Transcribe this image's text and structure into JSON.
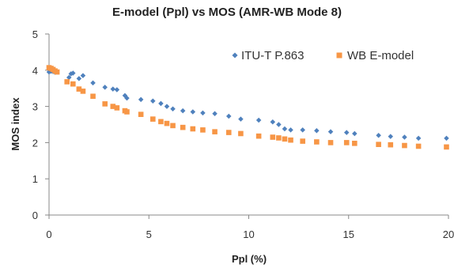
{
  "chart_data": {
    "type": "scatter",
    "title": "E-model (Ppl) vs MOS (AMR-WB Mode 8)",
    "xlabel": "Ppl (%)",
    "ylabel": "MOS index",
    "xlim": [
      0,
      20
    ],
    "ylim": [
      0,
      5
    ],
    "xticks": [
      "0",
      "5",
      "10",
      "15",
      "20"
    ],
    "yticks": [
      "0",
      "1",
      "2",
      "3",
      "4",
      "5"
    ],
    "grid": false,
    "legend_position": "top-right",
    "series": [
      {
        "name": "ITU-T P.863",
        "marker": "diamond",
        "color": "#4f81bd",
        "points": [
          [
            0.0,
            3.95
          ],
          [
            0.05,
            4.0
          ],
          [
            0.1,
            3.97
          ],
          [
            0.2,
            3.96
          ],
          [
            0.3,
            3.94
          ],
          [
            1.0,
            3.8
          ],
          [
            1.1,
            3.9
          ],
          [
            1.2,
            3.92
          ],
          [
            1.5,
            3.77
          ],
          [
            1.7,
            3.85
          ],
          [
            2.2,
            3.65
          ],
          [
            2.8,
            3.53
          ],
          [
            3.2,
            3.48
          ],
          [
            3.4,
            3.46
          ],
          [
            3.8,
            3.3
          ],
          [
            3.9,
            3.23
          ],
          [
            4.6,
            3.19
          ],
          [
            5.2,
            3.15
          ],
          [
            5.6,
            3.08
          ],
          [
            5.9,
            3.0
          ],
          [
            6.2,
            2.93
          ],
          [
            6.7,
            2.88
          ],
          [
            7.2,
            2.85
          ],
          [
            7.7,
            2.82
          ],
          [
            8.3,
            2.8
          ],
          [
            9.0,
            2.73
          ],
          [
            9.6,
            2.65
          ],
          [
            10.5,
            2.62
          ],
          [
            11.2,
            2.57
          ],
          [
            11.5,
            2.5
          ],
          [
            11.8,
            2.38
          ],
          [
            12.1,
            2.35
          ],
          [
            12.7,
            2.35
          ],
          [
            13.4,
            2.33
          ],
          [
            14.1,
            2.3
          ],
          [
            14.9,
            2.28
          ],
          [
            15.3,
            2.25
          ],
          [
            16.5,
            2.2
          ],
          [
            17.1,
            2.17
          ],
          [
            17.8,
            2.15
          ],
          [
            18.5,
            2.12
          ],
          [
            19.9,
            2.12
          ]
        ]
      },
      {
        "name": "WB E-model",
        "marker": "square",
        "color": "#f79646",
        "points": [
          [
            0.0,
            4.07
          ],
          [
            0.1,
            4.05
          ],
          [
            0.2,
            4.02
          ],
          [
            0.3,
            3.98
          ],
          [
            0.4,
            3.95
          ],
          [
            0.9,
            3.68
          ],
          [
            1.2,
            3.62
          ],
          [
            1.5,
            3.48
          ],
          [
            1.7,
            3.42
          ],
          [
            2.2,
            3.28
          ],
          [
            2.8,
            3.07
          ],
          [
            3.2,
            3.0
          ],
          [
            3.4,
            2.96
          ],
          [
            3.8,
            2.88
          ],
          [
            3.9,
            2.85
          ],
          [
            4.6,
            2.78
          ],
          [
            5.2,
            2.65
          ],
          [
            5.6,
            2.58
          ],
          [
            5.9,
            2.53
          ],
          [
            6.2,
            2.47
          ],
          [
            6.7,
            2.42
          ],
          [
            7.2,
            2.38
          ],
          [
            7.7,
            2.35
          ],
          [
            8.3,
            2.3
          ],
          [
            9.0,
            2.28
          ],
          [
            9.6,
            2.25
          ],
          [
            10.5,
            2.18
          ],
          [
            11.2,
            2.15
          ],
          [
            11.5,
            2.13
          ],
          [
            11.8,
            2.1
          ],
          [
            12.1,
            2.07
          ],
          [
            12.7,
            2.04
          ],
          [
            13.4,
            2.02
          ],
          [
            14.1,
            2.0
          ],
          [
            14.9,
            2.0
          ],
          [
            15.3,
            1.98
          ],
          [
            16.5,
            1.95
          ],
          [
            17.1,
            1.94
          ],
          [
            17.8,
            1.92
          ],
          [
            18.5,
            1.9
          ],
          [
            19.9,
            1.88
          ]
        ]
      }
    ]
  }
}
